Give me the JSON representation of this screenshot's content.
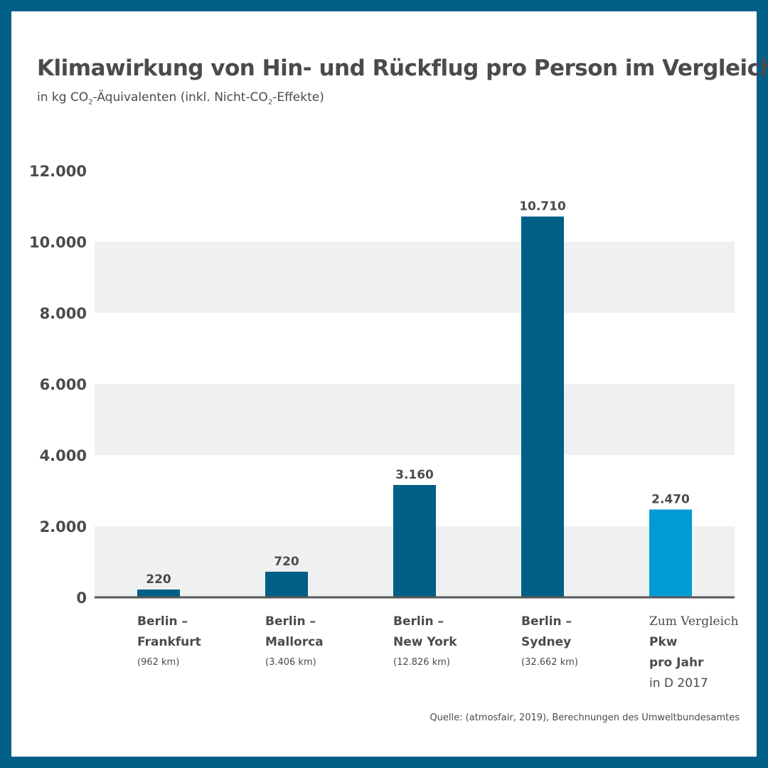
{
  "chart_data": {
    "type": "bar",
    "title": "Klimawirkung von Hin- und Rückflug pro Person im Vergleich",
    "subtitle_parts": [
      "in kg CO",
      "2",
      "-Äquivalenten (inkl. Nicht-CO",
      "2",
      "-Effekte)"
    ],
    "categories": [
      {
        "lines": [
          "Berlin –",
          "Frankfurt",
          "(962 km)"
        ],
        "styles": [
          "b",
          "b",
          "s"
        ]
      },
      {
        "lines": [
          "Berlin –",
          "Mallorca",
          "(3.406 km)"
        ],
        "styles": [
          "b",
          "b",
          "s"
        ]
      },
      {
        "lines": [
          "Berlin –",
          "New York",
          "(12.826 km)"
        ],
        "styles": [
          "b",
          "b",
          "s"
        ]
      },
      {
        "lines": [
          "Berlin –",
          "Sydney",
          "(32.662 km)"
        ],
        "styles": [
          "b",
          "b",
          "s"
        ]
      },
      {
        "lines": [
          "Zum Vergleich",
          "Pkw",
          "pro Jahr",
          "in D 2017"
        ],
        "styles": [
          "serif",
          "b",
          "b",
          "r"
        ]
      }
    ],
    "values": [
      220,
      720,
      3160,
      10710,
      2470
    ],
    "value_labels": [
      "220",
      "720",
      "3.160",
      "10.710",
      "2.470"
    ],
    "bar_colors": [
      "#005f87",
      "#005f87",
      "#005f87",
      "#005f87",
      "#009bd4"
    ],
    "ylim": [
      0,
      12000
    ],
    "yticks": [
      0,
      2000,
      4000,
      6000,
      8000,
      10000,
      12000
    ],
    "ytick_labels": [
      "0",
      "2.000",
      "4.000",
      "6.000",
      "8.000",
      "10.000",
      "12.000"
    ],
    "grid_bands": "alternating grey bands",
    "band_color": "#eff0f0",
    "source": "Quelle: (atmosfair, 2019), Berechnungen des Umweltbundesamtes"
  }
}
